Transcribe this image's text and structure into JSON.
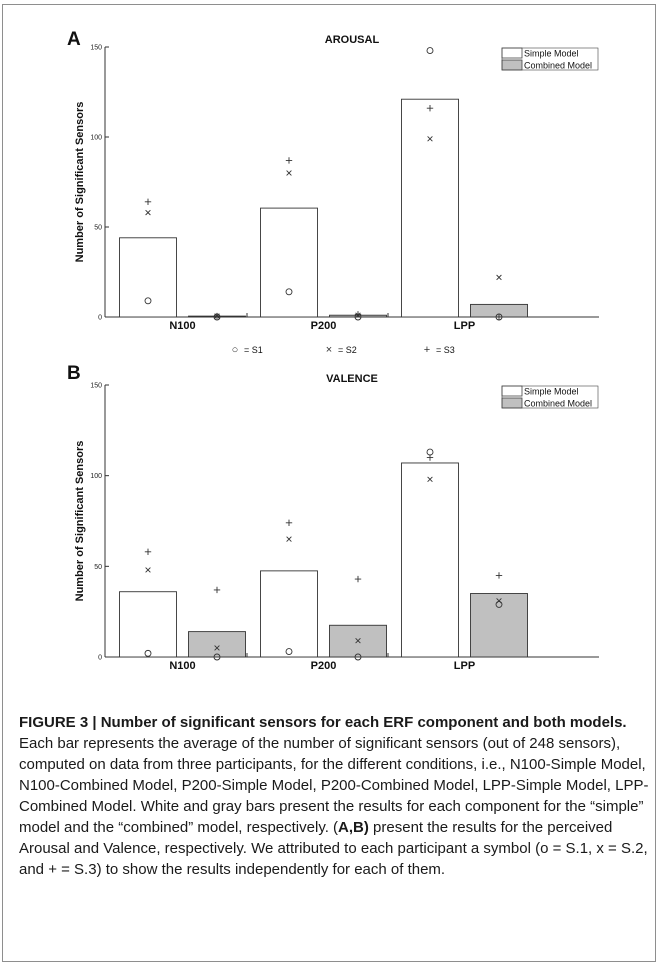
{
  "panels": [
    {
      "letter": "A",
      "title": "AROUSAL",
      "show_symbol_key": true
    },
    {
      "letter": "B",
      "title": "VALENCE",
      "show_symbol_key": false
    }
  ],
  "symbol_key": [
    {
      "glyph": "○",
      "label": "= S1"
    },
    {
      "glyph": "×",
      "label": "= S2"
    },
    {
      "glyph": "+",
      "label": "= S3"
    }
  ],
  "colors": {
    "simple_fill": "#ffffff",
    "combined_fill": "#c0c0c0",
    "bar_stroke": "#333333",
    "axis": "#333333"
  },
  "chart_data": [
    {
      "type": "bar",
      "title": "AROUSAL",
      "xlabel": "",
      "ylabel": "Number of Significant Sensors",
      "ylim": [
        0,
        150
      ],
      "yticks": [
        0,
        50,
        100,
        150
      ],
      "categories": [
        "N100",
        "P200",
        "LPP"
      ],
      "legend_position": "top-right",
      "series": [
        {
          "name": "Simple Model",
          "values": [
            44,
            60.5,
            121
          ]
        },
        {
          "name": "Combined Model",
          "values": [
            0.5,
            1,
            7
          ]
        }
      ],
      "participants": [
        {
          "symbol": "o",
          "simple": [
            9,
            14,
            148
          ],
          "combined": [
            0,
            0,
            0
          ]
        },
        {
          "symbol": "x",
          "simple": [
            58,
            80,
            99
          ],
          "combined": [
            0.5,
            1,
            22
          ]
        },
        {
          "symbol": "+",
          "simple": [
            64,
            87,
            116
          ],
          "combined": [
            0.5,
            1.5,
            0
          ]
        }
      ]
    },
    {
      "type": "bar",
      "title": "VALENCE",
      "xlabel": "",
      "ylabel": "Number of Significant Sensors",
      "ylim": [
        0,
        150
      ],
      "yticks": [
        0,
        50,
        100,
        150
      ],
      "categories": [
        "N100",
        "P200",
        "LPP"
      ],
      "legend_position": "top-right",
      "series": [
        {
          "name": "Simple Model",
          "values": [
            36,
            47.5,
            107
          ]
        },
        {
          "name": "Combined Model",
          "values": [
            14,
            17.5,
            35
          ]
        }
      ],
      "participants": [
        {
          "symbol": "o",
          "simple": [
            2,
            3,
            113
          ],
          "combined": [
            0,
            0,
            29
          ]
        },
        {
          "symbol": "x",
          "simple": [
            48,
            65,
            98
          ],
          "combined": [
            5,
            9,
            31
          ]
        },
        {
          "symbol": "+",
          "simple": [
            58,
            74,
            110
          ],
          "combined": [
            37,
            43,
            45
          ]
        }
      ]
    }
  ],
  "caption": {
    "bold": "FIGURE 3 | Number of significant sensors for each ERF component and both models.",
    "text1": " Each bar represents the average of the number of significant sensors (out of 248 sensors), computed on data from three participants, for the different conditions, i.e., N100-Simple Model, N100-Combined Model, P200-Simple Model, P200-Combined Model, LPP-Simple Model, LPP-Combined Model. White and gray bars present the results for each component for the “simple” model and the “combined” model, respectively. (",
    "ref": "A,B)",
    "text2": " present the results for the perceived Arousal and Valence, respectively. We attributed to each participant a symbol (o = S.1, x = S.2, and + = S.3) to show the results independently for each of them."
  }
}
